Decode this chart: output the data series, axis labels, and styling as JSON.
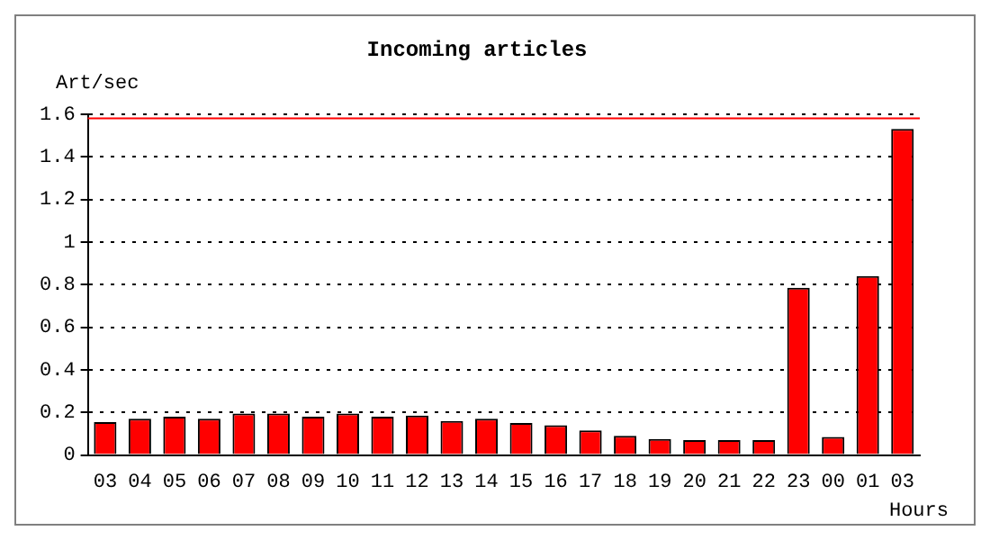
{
  "chart_data": {
    "type": "bar",
    "title": "Incoming articles",
    "ylabel": "Art/sec",
    "xlabel": "Hours",
    "categories": [
      "03",
      "04",
      "05",
      "06",
      "07",
      "08",
      "09",
      "10",
      "11",
      "12",
      "13",
      "14",
      "15",
      "16",
      "17",
      "18",
      "19",
      "20",
      "21",
      "22",
      "23",
      "00",
      "01",
      "03"
    ],
    "values": [
      0.155,
      0.17,
      0.18,
      0.17,
      0.195,
      0.195,
      0.18,
      0.195,
      0.18,
      0.185,
      0.16,
      0.17,
      0.15,
      0.14,
      0.115,
      0.09,
      0.075,
      0.07,
      0.07,
      0.07,
      0.785,
      0.085,
      0.84,
      1.53
    ],
    "color": "#ff0000",
    "ylim": [
      0,
      1.6
    ],
    "yticks": [
      0,
      0.2,
      0.4,
      0.6,
      0.8,
      1,
      1.2,
      1.4,
      1.6
    ],
    "grid": "y",
    "legend": false,
    "ref_lines": [
      {
        "axis": "y",
        "value": 1.58,
        "color": "#ff0000"
      }
    ]
  }
}
